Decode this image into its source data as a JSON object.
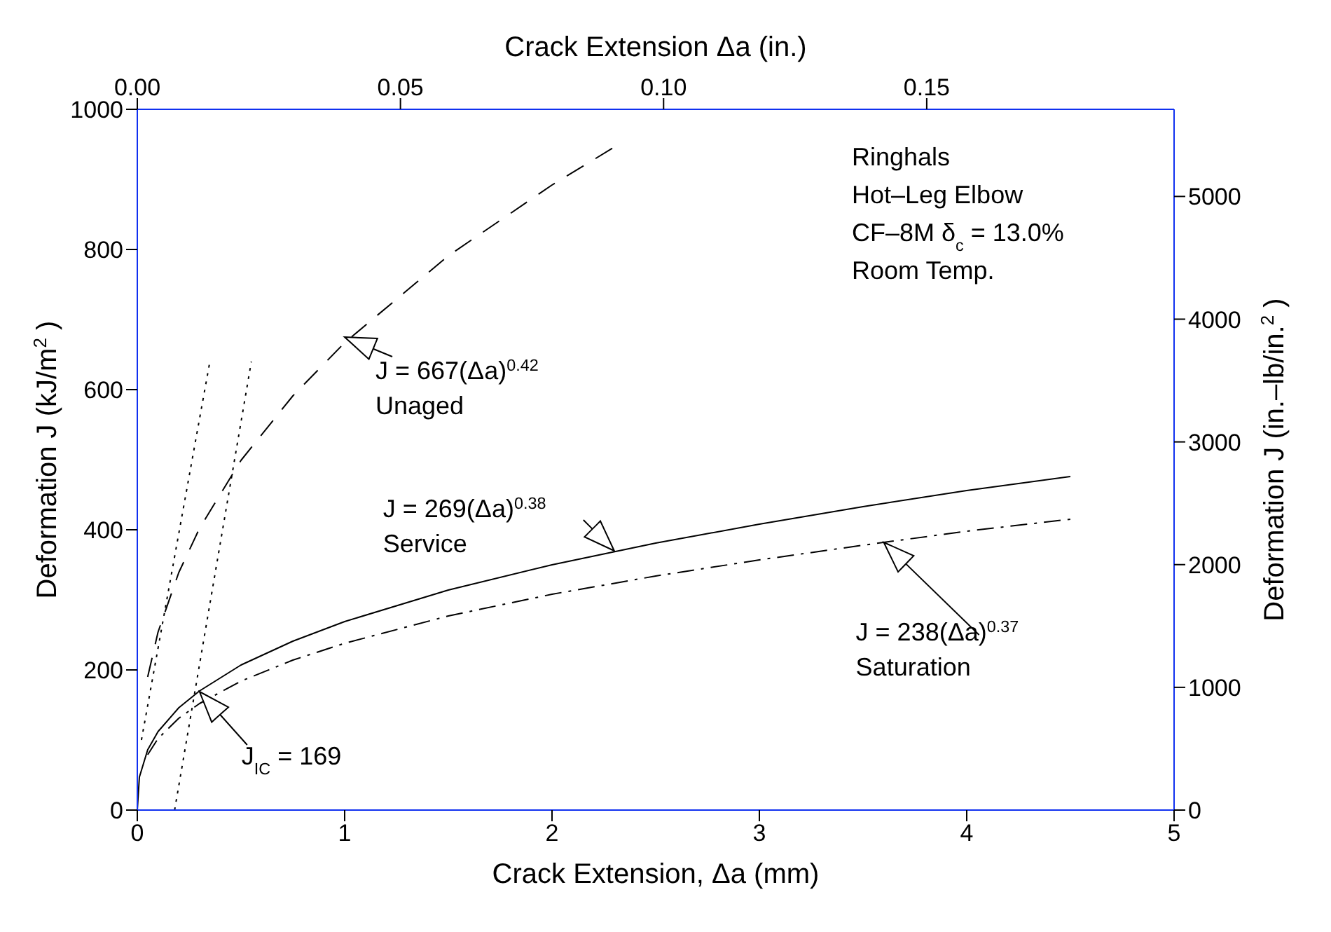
{
  "chart_data": {
    "type": "line",
    "xlabel": "Crack Extension, Δa (mm)",
    "x2label": "Crack Extension Δa (in.)",
    "ylabel": "Deformation J (kJ/m$^{2}$)",
    "y2label": "Deformation J (in.–lb/in.$^{2}$)",
    "xlim": [
      0,
      5
    ],
    "xticks": [
      0,
      1,
      2,
      3,
      4,
      5
    ],
    "ylim": [
      0,
      1000
    ],
    "yticks": [
      0,
      200,
      400,
      600,
      800,
      1000
    ],
    "x2lim": [
      0,
      0.197
    ],
    "x2ticks": [
      {
        "value": 0,
        "label": "0.00"
      },
      {
        "value": 0.05,
        "label": "0.05"
      },
      {
        "value": 0.1,
        "label": "0.10"
      },
      {
        "value": 0.15,
        "label": "0.15"
      }
    ],
    "y2lim": [
      0,
      5710
    ],
    "y2ticks": [
      0,
      1000,
      2000,
      3000,
      4000,
      5000
    ],
    "grid": false,
    "marker": "none",
    "series": [
      {
        "type": "line",
        "color": "#000000",
        "line_style": "dashed",
        "x": [
          0.05,
          0.1,
          0.2,
          0.3,
          0.5,
          0.75,
          1,
          1.5,
          2,
          2.3
        ],
        "values": [
          190,
          254,
          339,
          402,
          499,
          591,
          667,
          791,
          892,
          946
        ]
      },
      {
        "type": "line",
        "color": "#000000",
        "line_style": "solid",
        "x": [
          0,
          0.01,
          0.05,
          0.1,
          0.2,
          0.3,
          0.5,
          0.75,
          1,
          1.5,
          2,
          2.5,
          3,
          3.5,
          4,
          4.5
        ],
        "values": [
          0,
          47,
          86,
          112,
          146,
          170,
          207,
          241,
          269,
          314,
          350,
          381,
          408,
          433,
          456,
          476
        ]
      },
      {
        "type": "line",
        "color": "#000000",
        "line_style": "dashdot",
        "x": [
          0.05,
          0.1,
          0.2,
          0.3,
          0.5,
          0.75,
          1,
          1.5,
          2,
          2.5,
          3,
          3.5,
          4,
          4.5
        ],
        "values": [
          79,
          102,
          131,
          152,
          184,
          214,
          238,
          277,
          308,
          334,
          357,
          378,
          398,
          415
        ]
      },
      {
        "type": "line",
        "color": "#000000",
        "line_style": "dotted",
        "x": [
          0.02,
          0.35
        ],
        "values": [
          100,
          640
        ]
      },
      {
        "type": "line",
        "color": "#000000",
        "line_style": "dotted",
        "x": [
          0.18,
          0.55
        ],
        "values": [
          0,
          640
        ]
      }
    ],
    "annotations": [
      {
        "text": "J = 667(Δa)$^{0.42}$",
        "x": 1.0,
        "y": 675
      },
      "Unaged",
      {
        "text": "J = 269(Δa)$^{0.38}$",
        "x": 2.3,
        "y": 370
      },
      "Service",
      {
        "text": "J = 238(Δa)$^{0.37}$",
        "x": 3.6,
        "y": 382
      },
      "Saturation",
      {
        "text": "J$_{IC}$ = 169",
        "x": 0.3,
        "y": 169
      },
      "Ringhals",
      "Hot–Leg Elbow",
      "CF–8M δ$_{c}$ = 13.0%",
      "Room Temp."
    ]
  }
}
